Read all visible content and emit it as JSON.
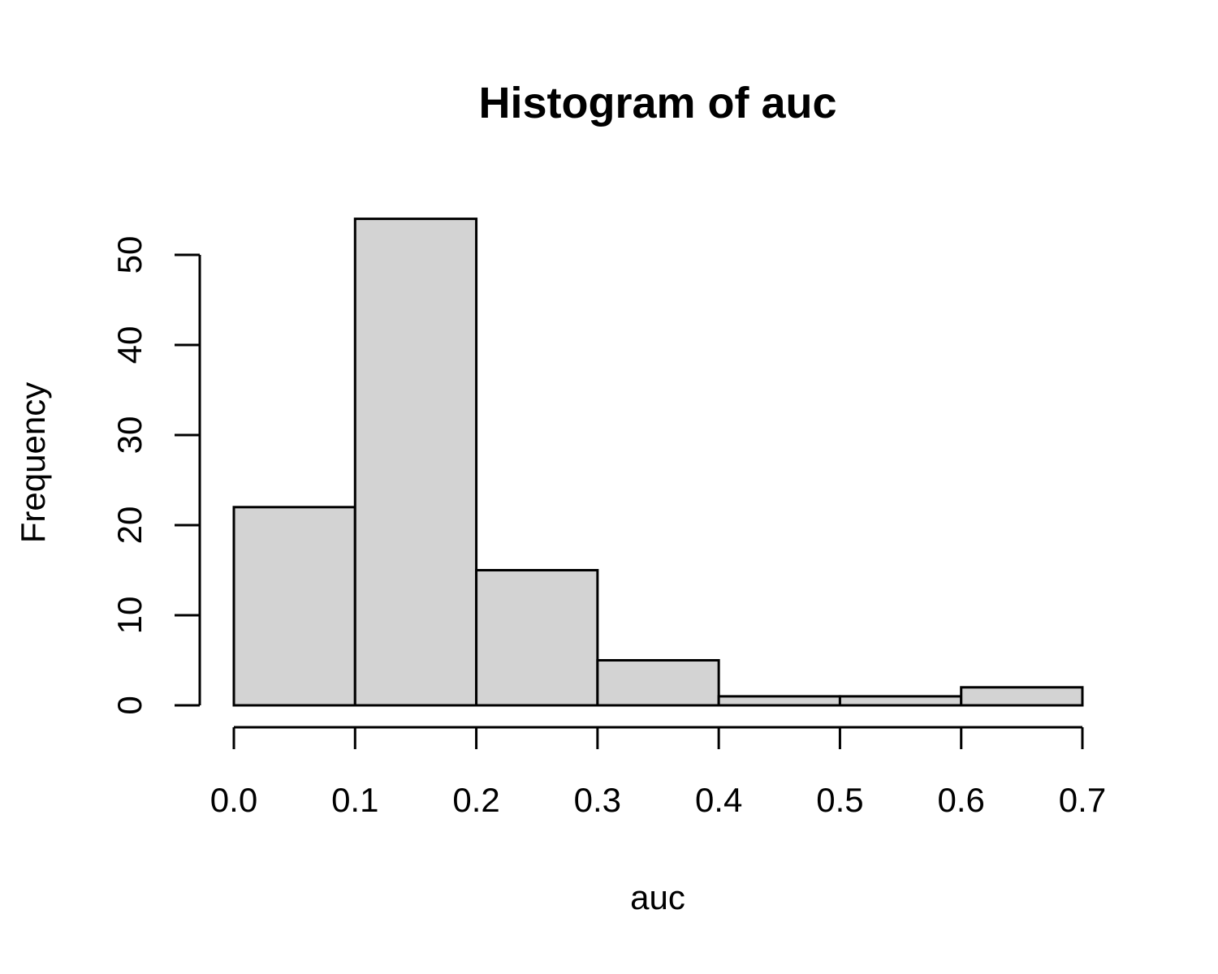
{
  "chart_data": {
    "type": "bar",
    "title": "Histogram of auc",
    "xlabel": "auc",
    "ylabel": "Frequency",
    "bins": [
      {
        "from": 0.0,
        "to": 0.1,
        "count": 22
      },
      {
        "from": 0.1,
        "to": 0.2,
        "count": 54
      },
      {
        "from": 0.2,
        "to": 0.3,
        "count": 15
      },
      {
        "from": 0.3,
        "to": 0.4,
        "count": 5
      },
      {
        "from": 0.4,
        "to": 0.5,
        "count": 1
      },
      {
        "from": 0.5,
        "to": 0.6,
        "count": 1
      },
      {
        "from": 0.6,
        "to": 0.7,
        "count": 2
      }
    ],
    "xlim": [
      0.0,
      0.7
    ],
    "ylim": [
      0,
      54
    ],
    "x_ticks": [
      "0.0",
      "0.1",
      "0.2",
      "0.3",
      "0.4",
      "0.5",
      "0.6",
      "0.7"
    ],
    "y_ticks": [
      "0",
      "10",
      "20",
      "30",
      "40",
      "50"
    ],
    "bar_color": "#d3d3d3",
    "grid": false
  }
}
